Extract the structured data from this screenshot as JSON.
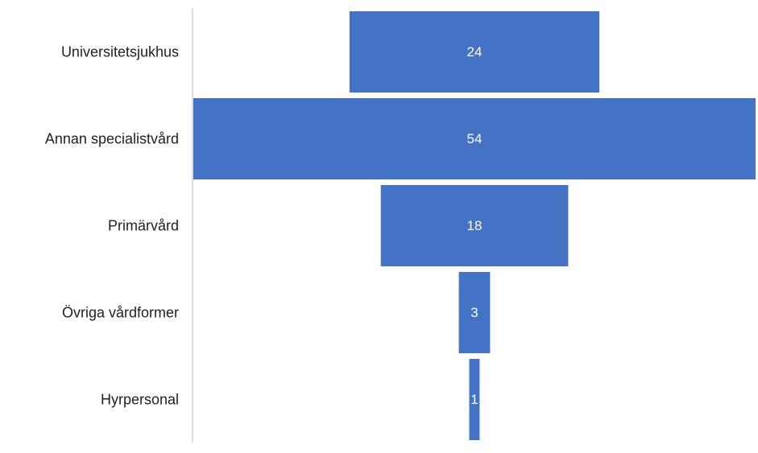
{
  "chart_data": {
    "type": "bar",
    "subtype": "funnel",
    "categories": [
      "Universitetsjukhus",
      "Annan specialistvård",
      "Primärvård",
      "Övriga vårdformer",
      "Hyrpersonal"
    ],
    "values": [
      24,
      54,
      18,
      3,
      1
    ],
    "data_labels": [
      "24",
      "54",
      "18",
      "3",
      "1"
    ],
    "title": "",
    "xlabel": "",
    "ylabel": "",
    "xlim": [
      0,
      54
    ],
    "grid": false,
    "legend": "none",
    "bar_color": "#4472C4",
    "axis_color": "#d0d0d0",
    "label_color": "#1f1f1f",
    "data_label_color": "#ffffff"
  }
}
